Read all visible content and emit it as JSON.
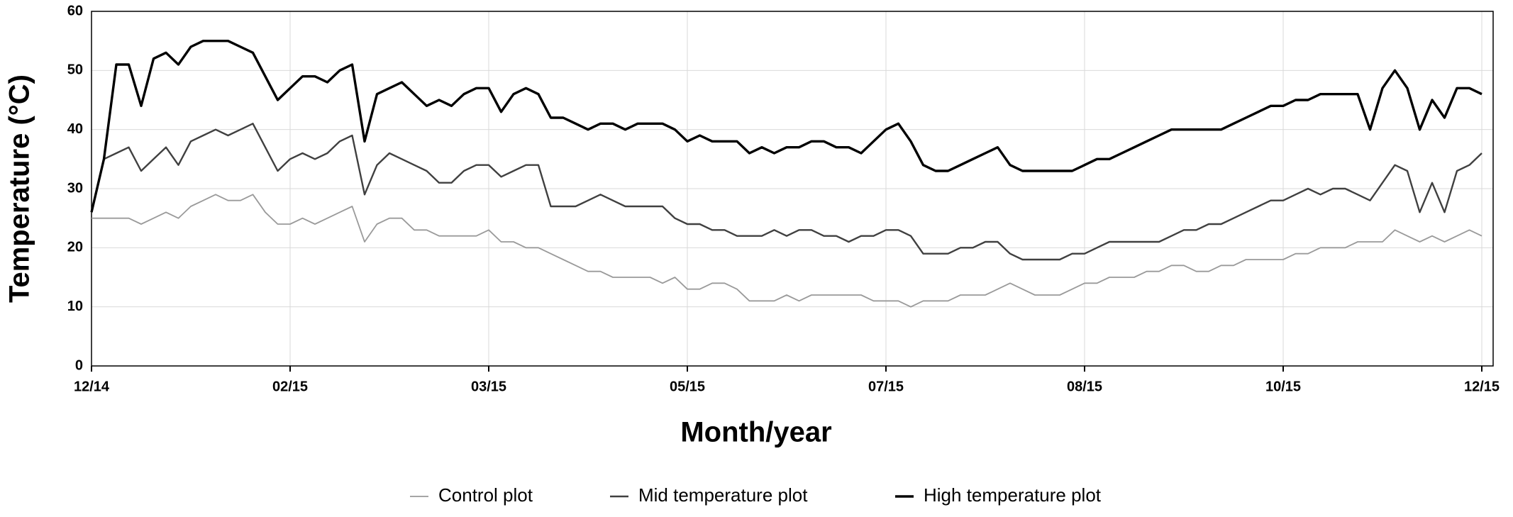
{
  "chart_data": {
    "type": "line",
    "x_label": "Month/year",
    "y_label": "Temperature (°C)",
    "categories": [
      "12/14",
      null,
      null,
      null,
      null,
      null,
      null,
      null,
      null,
      null,
      null,
      null,
      null,
      null,
      null,
      null,
      "02/15",
      null,
      null,
      null,
      null,
      null,
      null,
      null,
      null,
      null,
      null,
      null,
      null,
      null,
      null,
      null,
      "03/15",
      null,
      null,
      null,
      null,
      null,
      null,
      null,
      null,
      null,
      null,
      null,
      null,
      null,
      null,
      null,
      "05/15",
      null,
      null,
      null,
      null,
      null,
      null,
      null,
      null,
      null,
      null,
      null,
      null,
      null,
      null,
      null,
      "07/15",
      null,
      null,
      null,
      null,
      null,
      null,
      null,
      null,
      null,
      null,
      null,
      null,
      null,
      null,
      null,
      "08/15",
      null,
      null,
      null,
      null,
      null,
      null,
      null,
      null,
      null,
      null,
      null,
      null,
      null,
      null,
      null,
      "10/15",
      null,
      null,
      null,
      null,
      null,
      null,
      null,
      null,
      null,
      null,
      null,
      null,
      null,
      null,
      null,
      "12/15"
    ],
    "series": [
      {
        "name": "Control plot",
        "color": "#9a9a9a",
        "width": 1.8,
        "values": [
          25,
          25,
          25,
          25,
          24,
          25,
          26,
          25,
          27,
          28,
          29,
          28,
          28,
          29,
          26,
          24,
          24,
          25,
          24,
          25,
          26,
          27,
          21,
          24,
          25,
          25,
          23,
          23,
          22,
          22,
          22,
          22,
          23,
          21,
          21,
          20,
          20,
          19,
          18,
          17,
          16,
          16,
          15,
          15,
          15,
          15,
          14,
          15,
          13,
          13,
          14,
          14,
          13,
          11,
          11,
          11,
          12,
          11,
          12,
          12,
          12,
          12,
          12,
          11,
          11,
          11,
          10,
          11,
          11,
          11,
          12,
          12,
          12,
          13,
          14,
          13,
          12,
          12,
          12,
          13,
          14,
          14,
          15,
          15,
          15,
          16,
          16,
          17,
          17,
          16,
          16,
          17,
          17,
          18,
          18,
          18,
          18,
          19,
          19,
          20,
          20,
          20,
          21,
          21,
          21,
          23,
          22,
          21,
          22,
          21,
          22,
          23,
          22
        ]
      },
      {
        "name": "Mid temperature plot",
        "color": "#404040",
        "width": 2.4,
        "values": [
          26,
          35,
          36,
          37,
          33,
          35,
          37,
          34,
          38,
          39,
          40,
          39,
          40,
          41,
          37,
          33,
          35,
          36,
          35,
          36,
          38,
          39,
          29,
          34,
          36,
          35,
          34,
          33,
          31,
          31,
          33,
          34,
          34,
          32,
          33,
          34,
          34,
          27,
          27,
          27,
          28,
          29,
          28,
          27,
          27,
          27,
          27,
          25,
          24,
          24,
          23,
          23,
          22,
          22,
          22,
          23,
          22,
          23,
          23,
          22,
          22,
          21,
          22,
          22,
          23,
          23,
          22,
          19,
          19,
          19,
          20,
          20,
          21,
          21,
          19,
          18,
          18,
          18,
          18,
          19,
          19,
          20,
          21,
          21,
          21,
          21,
          21,
          22,
          23,
          23,
          24,
          24,
          25,
          26,
          27,
          28,
          28,
          29,
          30,
          29,
          30,
          30,
          29,
          28,
          31,
          34,
          33,
          26,
          31,
          26,
          33,
          34,
          36
        ]
      },
      {
        "name": "High temperature plot",
        "color": "#000000",
        "width": 3.4,
        "values": [
          26,
          35,
          51,
          51,
          44,
          52,
          53,
          51,
          54,
          55,
          55,
          55,
          54,
          53,
          49,
          45,
          47,
          49,
          49,
          48,
          50,
          51,
          38,
          46,
          47,
          48,
          46,
          44,
          45,
          44,
          46,
          47,
          47,
          43,
          46,
          47,
          46,
          42,
          42,
          41,
          40,
          41,
          41,
          40,
          41,
          41,
          41,
          40,
          38,
          39,
          38,
          38,
          38,
          36,
          37,
          36,
          37,
          37,
          38,
          38,
          37,
          37,
          36,
          38,
          40,
          41,
          38,
          34,
          33,
          33,
          34,
          35,
          36,
          37,
          34,
          33,
          33,
          33,
          33,
          33,
          34,
          35,
          35,
          36,
          37,
          38,
          39,
          40,
          40,
          40,
          40,
          40,
          41,
          42,
          43,
          44,
          44,
          45,
          45,
          46,
          46,
          46,
          46,
          40,
          47,
          50,
          47,
          40,
          45,
          42,
          47,
          47,
          46
        ]
      }
    ],
    "ylim": [
      0,
      60
    ],
    "yticks": [
      0,
      10,
      20,
      30,
      40,
      50,
      60
    ],
    "grid": true,
    "legend": "bottom"
  }
}
